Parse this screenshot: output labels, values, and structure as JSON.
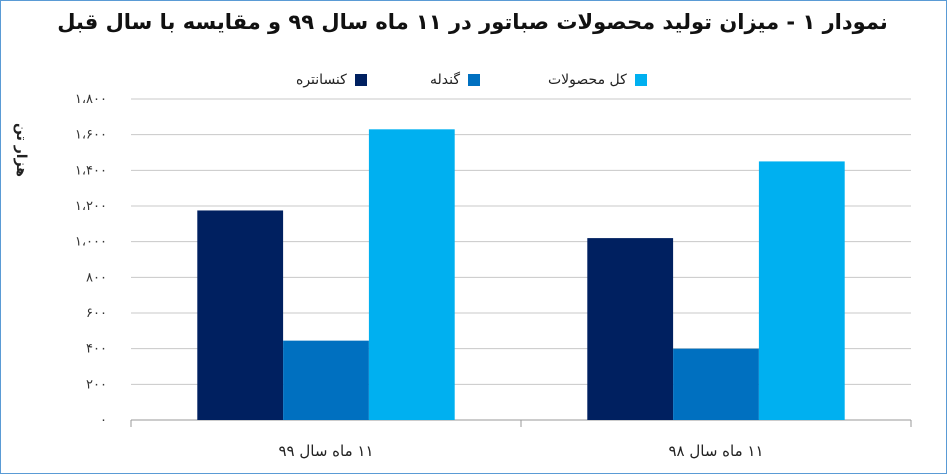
{
  "chart_data": {
    "type": "bar",
    "title": "نمودار ۱ - میزان تولید محصولات صباتور در ۱۱ ماه سال ۹۹ و مقایسه با سال قبل",
    "ylabel": "هزار تن",
    "xlabel": "",
    "categories": [
      "۱۱ ماه سال ۹۹",
      "۱۱ ماه سال ۹۸"
    ],
    "ylim": [
      0,
      1800
    ],
    "yticks": [
      0,
      200,
      400,
      600,
      800,
      1000,
      1200,
      1400,
      1600,
      1800
    ],
    "ytick_labels": [
      "۰",
      "۲۰۰",
      "۴۰۰",
      "۶۰۰",
      "۸۰۰",
      "۱،۰۰۰",
      "۱،۲۰۰",
      "۱،۴۰۰",
      "۱،۶۰۰",
      "۱،۸۰۰"
    ],
    "grid": true,
    "legend_position": "top",
    "series": [
      {
        "name": "کنسانتره",
        "color": "#002060",
        "values": [
          1175,
          1020
        ]
      },
      {
        "name": "گندله",
        "color": "#0070c0",
        "values": [
          445,
          400
        ]
      },
      {
        "name": "کل محصولات",
        "color": "#00b0f0",
        "values": [
          1630,
          1450
        ]
      }
    ]
  }
}
